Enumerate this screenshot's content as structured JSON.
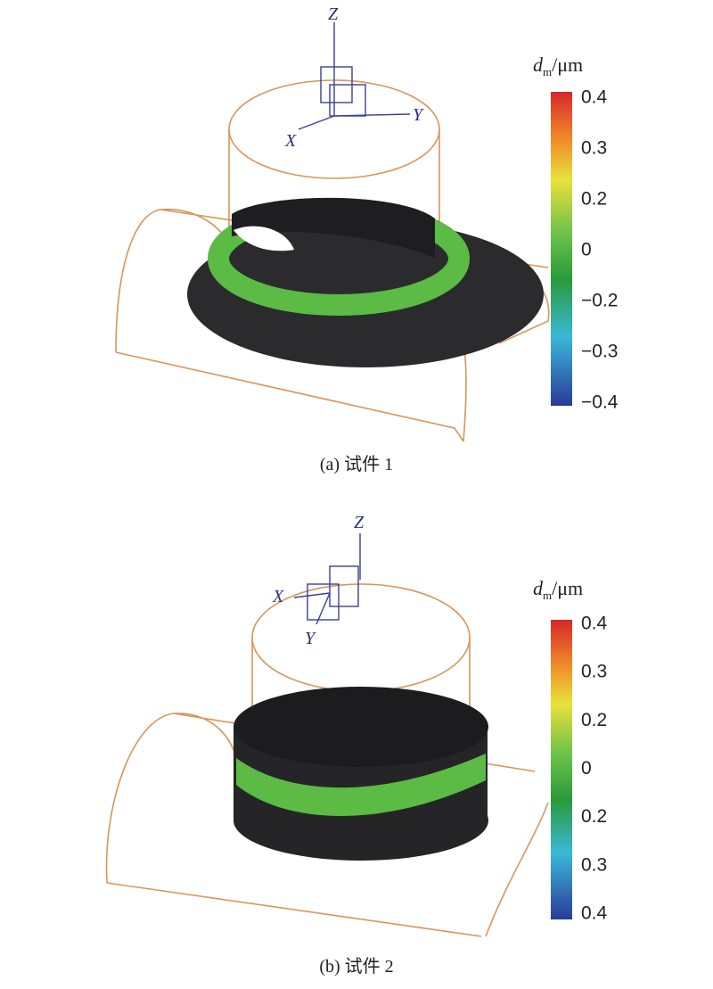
{
  "panels": [
    {
      "axis_labels": {
        "z": "Z",
        "x": "X",
        "y": "Y"
      },
      "colorbar": {
        "title": {
          "symbol": "d",
          "subscript": "m",
          "unit": "/μm"
        },
        "tick_labels": [
          "0.4",
          "0.3",
          "0.2",
          "0",
          "−0.2",
          "−0.3",
          "−0.4"
        ]
      },
      "caption": "(a) 试件 1"
    },
    {
      "axis_labels": {
        "z": "Z",
        "x": "X",
        "y": "Y"
      },
      "colorbar": {
        "title": {
          "symbol": "d",
          "subscript": "m",
          "unit": "/μm"
        },
        "tick_labels": [
          "0.4",
          "0.3",
          "0.2",
          "0",
          "0.2",
          "0.3",
          "0.4"
        ]
      },
      "caption": "(b) 试件 2"
    }
  ]
}
